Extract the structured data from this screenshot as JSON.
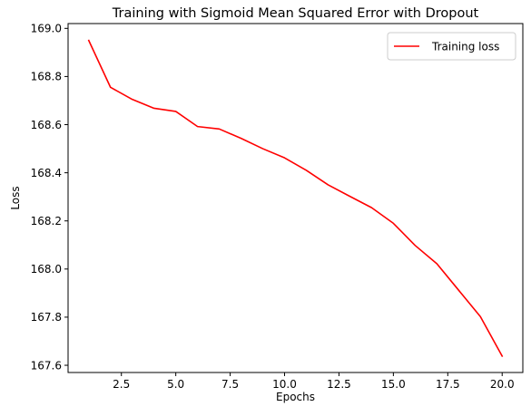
{
  "chart_data": {
    "type": "line",
    "title": "Training with Sigmoid Mean Squared Error with Dropout",
    "xlabel": "Epochs",
    "ylabel": "Loss",
    "xlim": [
      0.05,
      20.95
    ],
    "ylim": [
      167.57,
      169.02
    ],
    "xticks": [
      2.5,
      5.0,
      7.5,
      10.0,
      12.5,
      15.0,
      17.5,
      20.0
    ],
    "xtick_labels": [
      "2.5",
      "5.0",
      "7.5",
      "10.0",
      "12.5",
      "15.0",
      "17.5",
      "20.0"
    ],
    "yticks": [
      167.6,
      167.8,
      168.0,
      168.2,
      168.4,
      168.6,
      168.8,
      169.0
    ],
    "ytick_labels": [
      "167.6",
      "167.8",
      "168.0",
      "168.2",
      "168.4",
      "168.6",
      "168.8",
      "169.0"
    ],
    "grid": false,
    "legend_position": "top-right",
    "series": [
      {
        "name": "Training loss",
        "color": "#ff0000",
        "x": [
          1,
          2,
          3,
          4,
          5,
          6,
          7,
          8,
          9,
          10,
          11,
          12,
          13,
          14,
          15,
          16,
          17,
          18,
          19,
          20
        ],
        "values": [
          168.95,
          168.755,
          168.705,
          168.668,
          168.655,
          168.592,
          168.582,
          168.543,
          168.5,
          168.462,
          168.41,
          168.35,
          168.302,
          168.255,
          168.19,
          168.098,
          168.022,
          167.912,
          167.802,
          167.638
        ]
      }
    ]
  }
}
